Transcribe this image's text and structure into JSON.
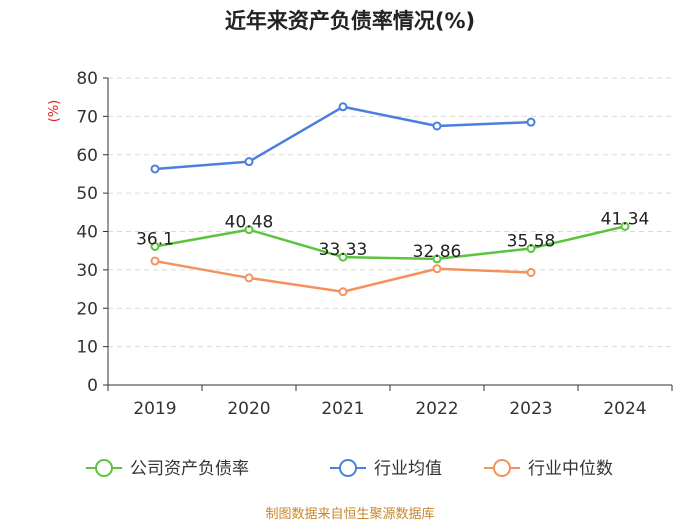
{
  "chart_data": {
    "type": "line",
    "title": "近年来资产负债率情况(%)",
    "ylabel": "(%)",
    "categories": [
      "2019",
      "2020",
      "2021",
      "2022",
      "2023",
      "2024"
    ],
    "ylim": [
      0,
      80
    ],
    "yticks": [
      0,
      10,
      20,
      30,
      40,
      50,
      60,
      70,
      80
    ],
    "grid": true,
    "legend_position": "bottom",
    "series": [
      {
        "name": "公司资产负债率",
        "color": "#5ac43c",
        "values": [
          36.1,
          40.48,
          33.33,
          32.86,
          35.58,
          41.34
        ],
        "labels": [
          "36.1",
          "40.48",
          "33.33",
          "32.86",
          "35.58",
          "41.34"
        ]
      },
      {
        "name": "行业均值",
        "color": "#4a7fe0",
        "values": [
          56.3,
          58.2,
          72.5,
          67.5,
          68.5,
          null
        ]
      },
      {
        "name": "行业中位数",
        "color": "#f4925e",
        "values": [
          32.3,
          27.9,
          24.3,
          30.3,
          29.3,
          null
        ]
      }
    ]
  },
  "source": "制图数据来自恒生聚源数据库"
}
